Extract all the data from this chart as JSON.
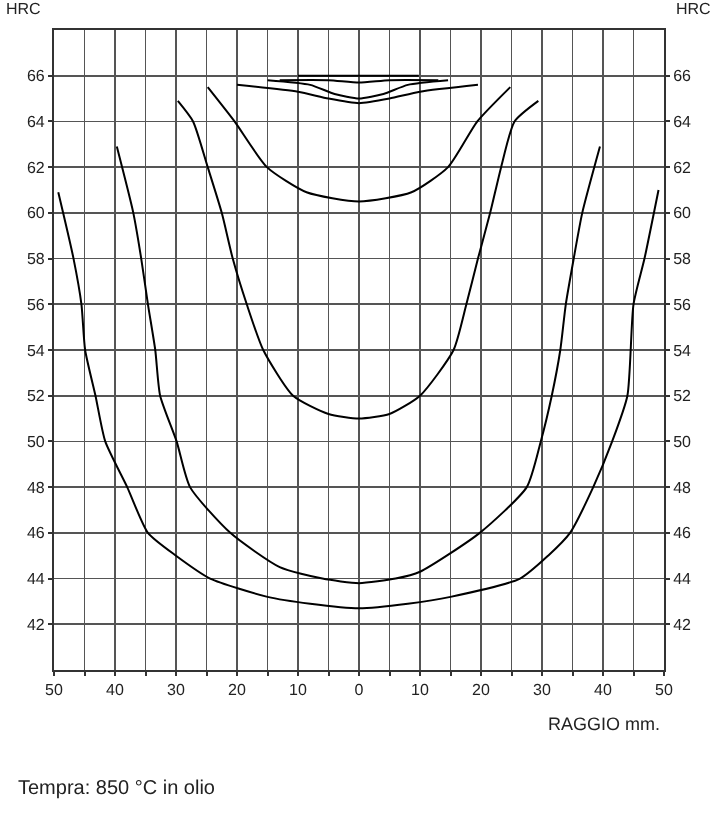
{
  "chart_data": {
    "type": "line",
    "xlabel": "RAGGIO mm.",
    "ylabel": "HRC",
    "y2label": "HRC",
    "annotations": [
      "Tempra: 850 °C in olio"
    ],
    "xlim": [
      -50,
      50
    ],
    "xticks": [
      {
        "value": -50,
        "label": "50"
      },
      {
        "value": -45,
        "label": null
      },
      {
        "value": -40,
        "label": "40"
      },
      {
        "value": -35,
        "label": null
      },
      {
        "value": -30,
        "label": "30"
      },
      {
        "value": -25,
        "label": null
      },
      {
        "value": -20,
        "label": "20"
      },
      {
        "value": -15,
        "label": null
      },
      {
        "value": -10,
        "label": "10"
      },
      {
        "value": -5,
        "label": null
      },
      0,
      {
        "value": 5,
        "label": null
      },
      10,
      {
        "value": 15,
        "label": null
      },
      20,
      {
        "value": 25,
        "label": null
      },
      30,
      {
        "value": 35,
        "label": null
      },
      40,
      {
        "value": 45,
        "label": null
      },
      50
    ],
    "ylim": [
      40,
      68
    ],
    "yticks": [
      42,
      44,
      46,
      48,
      50,
      52,
      54,
      56,
      58,
      60,
      62,
      64,
      66
    ],
    "y2lim": [
      40,
      68
    ],
    "y2ticks": [
      42,
      44,
      46,
      48,
      50,
      52,
      54,
      56,
      58,
      60,
      62,
      64,
      66
    ],
    "grid": true,
    "marker": "none",
    "line_style": "solid",
    "series": [
      {
        "color": "#000000",
        "x": [
          -49.3,
          -46.8,
          -45.5,
          -44.9,
          -43.2,
          -41.6,
          -38,
          -34.6,
          -30,
          -24.4,
          -15,
          -8,
          0,
          8,
          15,
          26.4,
          31,
          34.6,
          38.4,
          41.5,
          44,
          45,
          46.8,
          49.1
        ],
        "values": [
          60.9,
          58,
          56,
          54,
          52,
          50,
          48,
          46,
          45,
          44,
          43.2,
          42.9,
          42.7,
          42.9,
          43.2,
          44,
          45,
          46,
          48,
          50,
          52,
          56,
          58,
          61
        ]
      },
      {
        "color": "#000000",
        "x": [
          -39.7,
          -37,
          -35.7,
          -34.6,
          -33.4,
          -32.6,
          -29.9,
          -27.7,
          -21.1,
          -13,
          -6,
          0,
          6,
          10,
          19.8,
          27.5,
          29.8,
          31.6,
          33,
          33.9,
          35.2,
          36.6,
          39.5
        ],
        "values": [
          62.9,
          60,
          58,
          56,
          54,
          52,
          50,
          48,
          46,
          44.5,
          44,
          43.8,
          44,
          44.3,
          46,
          48,
          50,
          52,
          54,
          56,
          58,
          60,
          62.9
        ]
      },
      {
        "color": "#000000",
        "x": [
          -29.7,
          -27.2,
          -24.8,
          -22.5,
          -20.7,
          -18.4,
          -15.7,
          -10.8,
          -5,
          0,
          5,
          10,
          15.5,
          17.6,
          19.5,
          21.5,
          23.3,
          25.5,
          29.4
        ],
        "values": [
          64.9,
          64,
          62,
          60,
          58,
          56,
          54,
          52,
          51.2,
          51,
          51.2,
          52,
          54,
          56,
          58,
          60,
          62,
          64,
          64.9
        ]
      },
      {
        "color": "#000000",
        "x": [
          -24.8,
          -20.4,
          -15.1,
          -8.6,
          0,
          8.6,
          14.6,
          19.4,
          24.8
        ],
        "values": [
          65.5,
          64,
          62,
          60.9,
          60.5,
          60.9,
          62,
          64,
          65.5
        ]
      },
      {
        "color": "#000000",
        "x": [
          -20,
          -10,
          -5,
          0,
          5,
          10,
          19.5
        ],
        "values": [
          65.6,
          65.3,
          65,
          64.8,
          65,
          65.3,
          65.6
        ]
      },
      {
        "color": "#000000",
        "x": [
          -15,
          -8,
          -4,
          0,
          4,
          8,
          14.6
        ],
        "values": [
          65.8,
          65.6,
          65.2,
          65,
          65.2,
          65.6,
          65.8
        ]
      },
      {
        "color": "#000000",
        "x": [
          -13,
          -5,
          0,
          5,
          13
        ],
        "values": [
          65.8,
          65.8,
          65.7,
          65.8,
          65.8
        ]
      },
      {
        "color": "#000000",
        "x": [
          -10,
          0,
          9.8
        ],
        "values": [
          66,
          66,
          66
        ]
      }
    ]
  }
}
